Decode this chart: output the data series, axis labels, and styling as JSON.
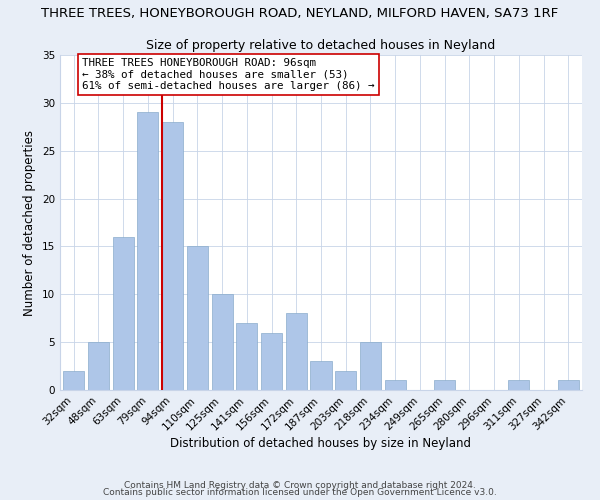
{
  "title": "THREE TREES, HONEYBOROUGH ROAD, NEYLAND, MILFORD HAVEN, SA73 1RF",
  "subtitle": "Size of property relative to detached houses in Neyland",
  "xlabel": "Distribution of detached houses by size in Neyland",
  "ylabel": "Number of detached properties",
  "bar_labels": [
    "32sqm",
    "48sqm",
    "63sqm",
    "79sqm",
    "94sqm",
    "110sqm",
    "125sqm",
    "141sqm",
    "156sqm",
    "172sqm",
    "187sqm",
    "203sqm",
    "218sqm",
    "234sqm",
    "249sqm",
    "265sqm",
    "280sqm",
    "296sqm",
    "311sqm",
    "327sqm",
    "342sqm"
  ],
  "bar_values": [
    2,
    5,
    16,
    29,
    28,
    15,
    10,
    7,
    6,
    8,
    3,
    2,
    5,
    1,
    0,
    1,
    0,
    0,
    1,
    0,
    1
  ],
  "bar_color": "#aec6e8",
  "bar_edge_color": "#8aaccc",
  "vline_color": "#cc0000",
  "ylim": [
    0,
    35
  ],
  "yticks": [
    0,
    5,
    10,
    15,
    20,
    25,
    30,
    35
  ],
  "annotation_text_line1": "THREE TREES HONEYBOROUGH ROAD: 96sqm",
  "annotation_text_line2": "← 38% of detached houses are smaller (53)",
  "annotation_text_line3": "61% of semi-detached houses are larger (86) →",
  "footnote1": "Contains HM Land Registry data © Crown copyright and database right 2024.",
  "footnote2": "Contains public sector information licensed under the Open Government Licence v3.0.",
  "bg_color": "#e8eef7",
  "plot_bg_color": "#ffffff",
  "grid_color": "#c8d4e8",
  "title_fontsize": 9.5,
  "subtitle_fontsize": 9.0,
  "axis_label_fontsize": 8.5,
  "tick_fontsize": 7.5,
  "annot_fontsize": 7.8,
  "footnote_fontsize": 6.5
}
